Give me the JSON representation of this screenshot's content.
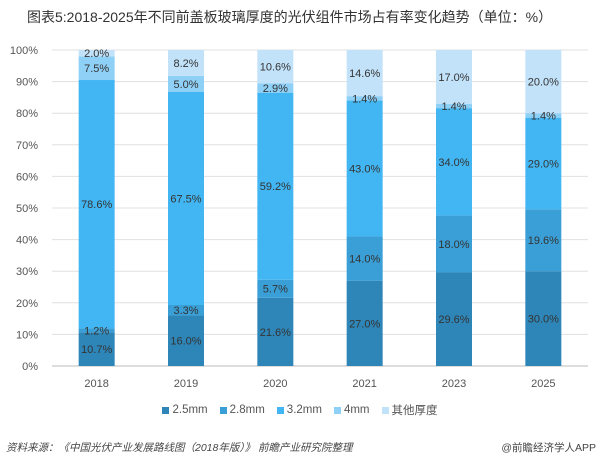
{
  "chart_data": {
    "type": "bar",
    "stacked": true,
    "title": "图表5:2018-2025年不同前盖板玻璃厚度的光伏组件市场占有率变化趋势（单位：%）",
    "categories": [
      "2018",
      "2019",
      "2020",
      "2021",
      "2023",
      "2025"
    ],
    "series": [
      {
        "name": "2.5mm",
        "color": "#2e86b8",
        "values": [
          10.7,
          16.0,
          21.6,
          27.0,
          29.6,
          30.0
        ]
      },
      {
        "name": "2.8mm",
        "color": "#3a9fd6",
        "values": [
          1.2,
          3.3,
          5.7,
          14.0,
          18.0,
          19.6
        ]
      },
      {
        "name": "3.2mm",
        "color": "#42b6f2",
        "values": [
          78.6,
          67.5,
          59.2,
          43.0,
          34.0,
          29.0
        ]
      },
      {
        "name": "4mm",
        "color": "#8fd0f6",
        "values": [
          7.5,
          5.0,
          2.9,
          1.4,
          1.4,
          1.4
        ]
      },
      {
        "name": "其他厚度",
        "color": "#c2e2fa",
        "values": [
          2.0,
          8.2,
          10.6,
          14.6,
          17.0,
          20.0
        ]
      }
    ],
    "yticks": [
      "0%",
      "10%",
      "20%",
      "30%",
      "40%",
      "50%",
      "60%",
      "70%",
      "80%",
      "90%",
      "100%"
    ],
    "ylim": [
      0,
      100
    ],
    "grid": true,
    "legend": "bottom"
  },
  "footer": {
    "source": "资料来源：《中国光伏产业发展路线图（2018年版）》 前瞻产业研究院整理",
    "brand": "@前瞻经济学人APP"
  }
}
